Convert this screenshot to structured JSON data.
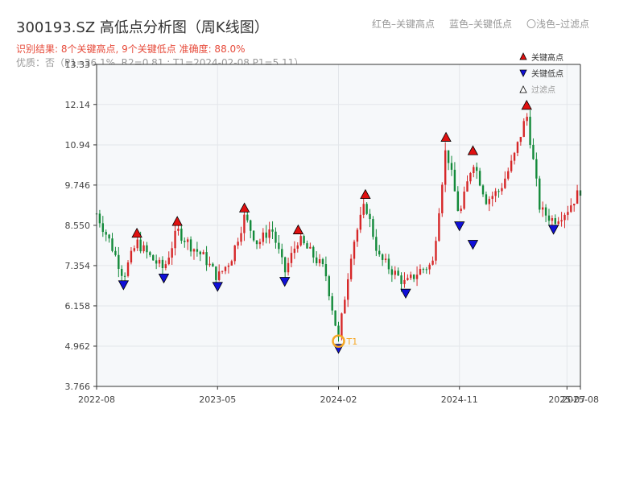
{
  "page": {
    "title": "300193.SZ 高低点分析图（周K线图）",
    "subtitle": "识别结果: 8个关键高点, 9个关键低点   准确度: 88.0%",
    "quality": "优质：否（P1=36.1%, R2=0.81 ; T1=2024-02-08 P1=5.11）",
    "header_legend": [
      "红色–关键高点",
      "蓝色–关键低点",
      "〇浅色–过滤点"
    ]
  },
  "colors": {
    "up": "#d62728",
    "down": "#138a3a",
    "high_marker": "#e01010",
    "low_marker": "#1010d8",
    "t1": "#f5a623",
    "grid": "#e3e6ea",
    "plot_bg": "#f6f8fa"
  },
  "chart_data": {
    "type": "candlestick",
    "x_ticks": [
      "2022-08",
      "2023-05",
      "2024-02",
      "2024-11",
      "2025-07",
      "2025-08"
    ],
    "y_ticks": [
      "3.766",
      "4.962",
      "6.158",
      "7.354",
      "8.550",
      "9.746",
      "10.94",
      "12.14",
      "13.33"
    ],
    "ylim": [
      3.766,
      13.33
    ],
    "x_range": [
      "2022-08",
      "2025-08"
    ],
    "grid": true,
    "legend_placement": "top-right",
    "legend": [
      "关键高点",
      "关键低点",
      "过滤点"
    ],
    "annotation": {
      "label": "T1",
      "date": "2024-02-08",
      "value": 5.11
    },
    "key_highs": [
      {
        "date": "2022-11",
        "value": 8.1
      },
      {
        "date": "2023-02",
        "value": 8.45
      },
      {
        "date": "2023-07",
        "value": 8.85
      },
      {
        "date": "2023-11",
        "value": 8.2
      },
      {
        "date": "2024-04",
        "value": 9.25
      },
      {
        "date": "2024-10",
        "value": 10.95
      },
      {
        "date": "2024-12",
        "value": 10.55
      },
      {
        "date": "2025-04",
        "value": 11.9
      }
    ],
    "key_lows": [
      {
        "date": "2022-10",
        "value": 7.0
      },
      {
        "date": "2023-01",
        "value": 7.2
      },
      {
        "date": "2023-05",
        "value": 6.95
      },
      {
        "date": "2023-10",
        "value": 7.1
      },
      {
        "date": "2024-02",
        "value": 5.11
      },
      {
        "date": "2024-07",
        "value": 6.75
      },
      {
        "date": "2024-11",
        "value": 8.75
      },
      {
        "date": "2024-12",
        "value": 8.2
      },
      {
        "date": "2025-06",
        "value": 8.65
      }
    ],
    "price_path": [
      [
        "2022-08",
        8.9
      ],
      [
        "2022-09",
        8.05
      ],
      [
        "2022-10",
        7.05
      ],
      [
        "2022-11",
        8.05
      ],
      [
        "2022-12",
        7.6
      ],
      [
        "2023-01",
        7.25
      ],
      [
        "2023-02",
        8.4
      ],
      [
        "2023-03",
        7.95
      ],
      [
        "2023-04",
        7.6
      ],
      [
        "2023-05",
        7.0
      ],
      [
        "2023-06",
        7.55
      ],
      [
        "2023-07",
        8.8
      ],
      [
        "2023-08",
        8.0
      ],
      [
        "2023-09",
        8.5
      ],
      [
        "2023-10",
        7.15
      ],
      [
        "2023-11",
        8.15
      ],
      [
        "2023-12",
        7.7
      ],
      [
        "2024-01",
        7.2
      ],
      [
        "2024-02",
        5.15
      ],
      [
        "2024-03",
        7.9
      ],
      [
        "2024-04",
        9.2
      ],
      [
        "2024-05",
        7.6
      ],
      [
        "2024-06",
        7.2
      ],
      [
        "2024-07",
        6.8
      ],
      [
        "2024-08",
        7.2
      ],
      [
        "2024-09",
        7.4
      ],
      [
        "2024-10",
        10.9
      ],
      [
        "2024-11",
        8.8
      ],
      [
        "2024-12",
        10.5
      ],
      [
        "2025-01",
        9.3
      ],
      [
        "2025-02",
        9.6
      ],
      [
        "2025-03",
        10.5
      ],
      [
        "2025-04",
        11.85
      ],
      [
        "2025-05",
        9.0
      ],
      [
        "2025-06",
        8.7
      ],
      [
        "2025-07",
        9.0
      ],
      [
        "2025-08",
        9.6
      ]
    ]
  }
}
